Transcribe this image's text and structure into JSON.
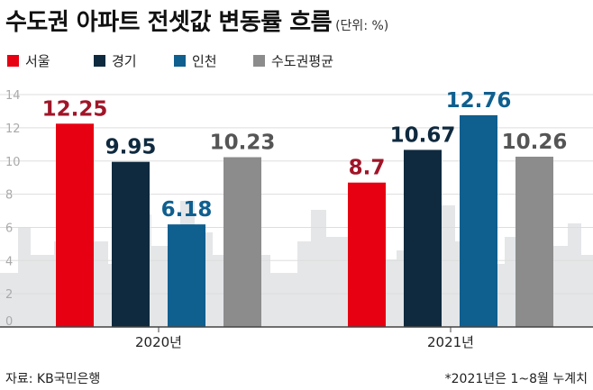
{
  "title": "수도권 아파트 전셋값 변동률 흐름",
  "unit": "(단위: %)",
  "source": "자료: KB국민은행",
  "note": "*2021년은 1~8월 누계치",
  "colors": {
    "seoul": "#e60012",
    "gyeonggi": "#0f2a3f",
    "incheon": "#0f5f8f",
    "average": "#8c8c8c",
    "grid": "#dddddd",
    "skyline": "#e4e6e8"
  },
  "chart_data": {
    "type": "bar",
    "categories": [
      "2020년",
      "2021년"
    ],
    "series": [
      {
        "name": "서울",
        "values": [
          12.25,
          8.7
        ],
        "labels": [
          "12.25",
          "8.7"
        ],
        "color": "#e60012",
        "label_color": "#a01528"
      },
      {
        "name": "경기",
        "values": [
          9.95,
          10.67
        ],
        "labels": [
          "9.95",
          "10.67"
        ],
        "color": "#0f2a3f",
        "label_color": "#0f2a3f"
      },
      {
        "name": "인천",
        "values": [
          6.18,
          12.76
        ],
        "labels": [
          "6.18",
          "12.76"
        ],
        "color": "#0f5f8f",
        "label_color": "#0f5f8f"
      },
      {
        "name": "수도권평균",
        "values": [
          10.23,
          10.26
        ],
        "labels": [
          "10.23",
          "10.26"
        ],
        "color": "#8c8c8c",
        "label_color": "#555555"
      }
    ],
    "yticks": [
      0,
      2,
      4,
      6,
      8,
      10,
      12,
      14
    ],
    "ylim": [
      0,
      14.6
    ],
    "grid": true,
    "legend_position": "top-left"
  }
}
